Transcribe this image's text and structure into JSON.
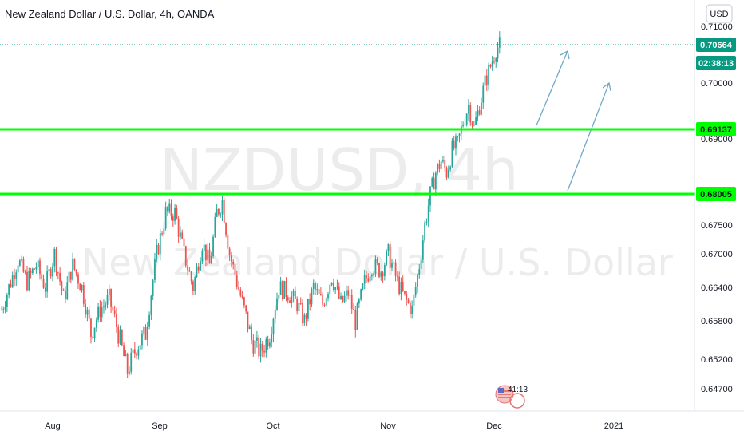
{
  "header": {
    "title": "New Zealand Dollar / U.S. Dollar, 4h, OANDA"
  },
  "watermark": {
    "symbol": "NZDUSD, 4h",
    "description": "New Zealand Dollar / U.S. Dollar"
  },
  "currency_button": "USD",
  "price_scale": {
    "ticks": [
      "0.71000",
      "0.70000",
      "0.69000",
      "0.68000",
      "0.67500",
      "0.67000",
      "0.66400",
      "0.65800",
      "0.65200",
      "0.64700"
    ]
  },
  "tags": {
    "last_price": {
      "text": "0.70664",
      "color": "#089981"
    },
    "countdown": {
      "text": "02:38:13",
      "color": "#089981"
    },
    "level_upper": {
      "text": "0.69137",
      "color": "#00ff00"
    },
    "level_lower": {
      "text": "0.68005",
      "color": "#00ff00"
    }
  },
  "time_axis": {
    "labels": [
      "Aug",
      "Sep",
      "Oct",
      "Nov",
      "Dec",
      "2021"
    ]
  },
  "event_marker": {
    "text": "41:13",
    "icon": "us-flag-icon"
  },
  "chart_data": {
    "type": "candlestick",
    "title": "New Zealand Dollar / U.S. Dollar, 4h, OANDA",
    "symbol": "NZDUSD",
    "interval": "4h",
    "xlabel": "",
    "ylabel": "",
    "x_ticks": [
      "Aug",
      "Sep",
      "Oct",
      "Nov",
      "Dec",
      "2021"
    ],
    "y_ticks": [
      0.71,
      0.7,
      0.69,
      0.68,
      0.675,
      0.67,
      0.664,
      0.658,
      0.652,
      0.647
    ],
    "ylim": [
      0.6425,
      0.7125
    ],
    "up_color": "#26a69a",
    "down_color": "#ef5350",
    "horizontal_levels": [
      {
        "value": 0.69137,
        "color": "#00ff00"
      },
      {
        "value": 0.68005,
        "color": "#00ff00"
      }
    ],
    "last_price": 0.70664,
    "close_path": [
      [
        0,
        0.66
      ],
      [
        4,
        0.664
      ],
      [
        9,
        0.669
      ],
      [
        14,
        0.665
      ],
      [
        19,
        0.668
      ],
      [
        24,
        0.664
      ],
      [
        29,
        0.67
      ],
      [
        34,
        0.662
      ],
      [
        39,
        0.668
      ],
      [
        44,
        0.664
      ],
      [
        49,
        0.656
      ],
      [
        54,
        0.66
      ],
      [
        59,
        0.662
      ],
      [
        64,
        0.656
      ],
      [
        69,
        0.65
      ],
      [
        74,
        0.654
      ],
      [
        79,
        0.656
      ],
      [
        85,
        0.67
      ],
      [
        90,
        0.677
      ],
      [
        95,
        0.677
      ],
      [
        100,
        0.67
      ],
      [
        105,
        0.664
      ],
      [
        110,
        0.672
      ],
      [
        114,
        0.668
      ],
      [
        118,
        0.677
      ],
      [
        121,
        0.679
      ],
      [
        125,
        0.67
      ],
      [
        129,
        0.665
      ],
      [
        133,
        0.66
      ],
      [
        137,
        0.655
      ],
      [
        142,
        0.653
      ],
      [
        147,
        0.656
      ],
      [
        152,
        0.664
      ],
      [
        157,
        0.663
      ],
      [
        162,
        0.661
      ],
      [
        166,
        0.658
      ],
      [
        171,
        0.664
      ],
      [
        176,
        0.661
      ],
      [
        181,
        0.666
      ],
      [
        186,
        0.661
      ],
      [
        190,
        0.663
      ],
      [
        194,
        0.658
      ],
      [
        199,
        0.665
      ],
      [
        203,
        0.668
      ],
      [
        208,
        0.667
      ],
      [
        212,
        0.67
      ],
      [
        217,
        0.665
      ],
      [
        221,
        0.662
      ],
      [
        225,
        0.66
      ],
      [
        229,
        0.668
      ],
      [
        232,
        0.675
      ],
      [
        235,
        0.68
      ],
      [
        238,
        0.684
      ],
      [
        241,
        0.686
      ],
      [
        244,
        0.684
      ],
      [
        247,
        0.688
      ],
      [
        250,
        0.689
      ],
      [
        253,
        0.693
      ],
      [
        256,
        0.696
      ],
      [
        259,
        0.692
      ],
      [
        262,
        0.696
      ],
      [
        265,
        0.7
      ],
      [
        268,
        0.703
      ],
      [
        271,
        0.706
      ],
      [
        273,
        0.7066
      ]
    ],
    "annotations": [
      {
        "type": "arrow",
        "from": [
          [
            283,
            0.6918
          ],
          [
            0.6948
          ]
        ],
        "note": "projection arrows"
      }
    ]
  }
}
